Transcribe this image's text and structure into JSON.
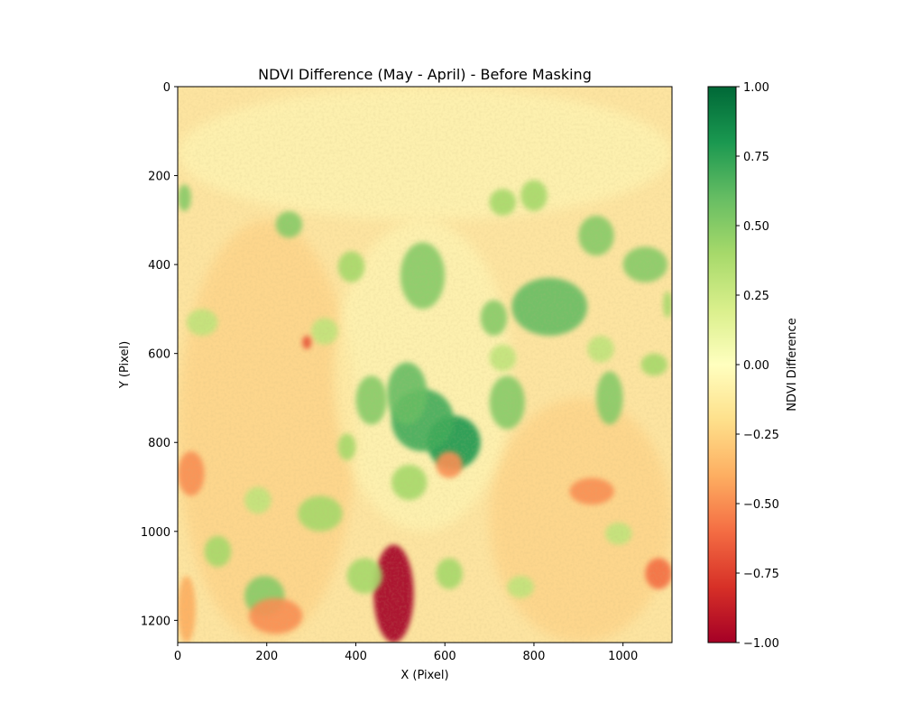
{
  "chart_data": {
    "type": "heatmap",
    "title": "NDVI Difference (May - April) - Before Masking",
    "xlabel": "X (Pixel)",
    "ylabel": "Y (Pixel)",
    "xlim": [
      0,
      1110
    ],
    "ylim": [
      1250,
      0
    ],
    "y_axis_inverted": true,
    "x_ticks": [
      0,
      200,
      400,
      600,
      800,
      1000
    ],
    "x_tick_labels": [
      "0",
      "200",
      "400",
      "600",
      "800",
      "1000"
    ],
    "y_ticks": [
      0,
      200,
      400,
      600,
      800,
      1000,
      1200
    ],
    "y_tick_labels": [
      "0",
      "200",
      "400",
      "600",
      "800",
      "1000",
      "1200"
    ],
    "colormap": "RdYlGn",
    "colormap_stops": [
      "#a50026",
      "#d73027",
      "#f46d43",
      "#fdae61",
      "#fee08b",
      "#ffffbf",
      "#d9ef8b",
      "#a6d96a",
      "#66bd63",
      "#1a9850",
      "#006837"
    ],
    "dominant_value_range": [
      -0.3,
      0.0
    ],
    "colorbar": {
      "label": "NDVI Difference",
      "range": [
        -1.0,
        1.0
      ],
      "ticks": [
        -1.0,
        -0.75,
        -0.5,
        -0.25,
        0.0,
        0.25,
        0.5,
        0.75,
        1.0
      ],
      "tick_labels": [
        "−1.00",
        "−0.75",
        "−0.50",
        "−0.25",
        "0.00",
        "0.25",
        "0.50",
        "0.75",
        "1.00"
      ]
    },
    "regions": [
      {
        "value": -1.0,
        "x": [
          440,
          530
        ],
        "y": [
          1030,
          1250
        ]
      },
      {
        "value": 0.8,
        "x": [
          560,
          680
        ],
        "y": [
          740,
          860
        ]
      },
      {
        "value": 0.7,
        "x": [
          480,
          620
        ],
        "y": [
          680,
          820
        ]
      },
      {
        "value": 0.6,
        "x": [
          470,
          560
        ],
        "y": [
          620,
          760
        ]
      },
      {
        "value": 0.6,
        "x": [
          750,
          920
        ],
        "y": [
          430,
          560
        ]
      },
      {
        "value": 0.5,
        "x": [
          500,
          600
        ],
        "y": [
          350,
          500
        ]
      },
      {
        "value": 0.5,
        "x": [
          400,
          470
        ],
        "y": [
          650,
          760
        ]
      },
      {
        "value": 0.5,
        "x": [
          680,
          740
        ],
        "y": [
          480,
          560
        ]
      },
      {
        "value": 0.5,
        "x": [
          700,
          780
        ],
        "y": [
          650,
          770
        ]
      },
      {
        "value": 0.5,
        "x": [
          940,
          1000
        ],
        "y": [
          640,
          760
        ]
      },
      {
        "value": 0.5,
        "x": [
          1000,
          1100
        ],
        "y": [
          360,
          440
        ]
      },
      {
        "value": 0.5,
        "x": [
          900,
          980
        ],
        "y": [
          290,
          380
        ]
      },
      {
        "value": 0.4,
        "x": [
          360,
          420
        ],
        "y": [
          370,
          440
        ]
      },
      {
        "value": 0.5,
        "x": [
          220,
          280
        ],
        "y": [
          280,
          340
        ]
      },
      {
        "value": 0.4,
        "x": [
          60,
          120
        ],
        "y": [
          1010,
          1080
        ]
      },
      {
        "value": 0.5,
        "x": [
          150,
          240
        ],
        "y": [
          1100,
          1190
        ]
      },
      {
        "value": 0.4,
        "x": [
          270,
          370
        ],
        "y": [
          920,
          1000
        ]
      },
      {
        "value": 0.4,
        "x": [
          380,
          460
        ],
        "y": [
          1060,
          1140
        ]
      },
      {
        "value": 0.4,
        "x": [
          580,
          640
        ],
        "y": [
          1060,
          1130
        ]
      },
      {
        "value": 0.4,
        "x": [
          480,
          560
        ],
        "y": [
          850,
          930
        ]
      },
      {
        "value": 0.4,
        "x": [
          360,
          400
        ],
        "y": [
          780,
          840
        ]
      },
      {
        "value": 0.3,
        "x": [
          20,
          90
        ],
        "y": [
          500,
          560
        ]
      },
      {
        "value": 0.4,
        "x": [
          1040,
          1100
        ],
        "y": [
          600,
          650
        ]
      },
      {
        "value": 0.5,
        "x": [
          0,
          30
        ],
        "y": [
          220,
          280
        ]
      },
      {
        "value": 0.4,
        "x": [
          770,
          830
        ],
        "y": [
          210,
          280
        ]
      },
      {
        "value": 0.4,
        "x": [
          1090,
          1110
        ],
        "y": [
          460,
          520
        ]
      },
      {
        "value": 0.3,
        "x": [
          300,
          360
        ],
        "y": [
          520,
          580
        ]
      },
      {
        "value": 0.3,
        "x": [
          700,
          760
        ],
        "y": [
          580,
          640
        ]
      },
      {
        "value": 0.3,
        "x": [
          920,
          980
        ],
        "y": [
          560,
          620
        ]
      },
      {
        "value": 0.4,
        "x": [
          700,
          760
        ],
        "y": [
          230,
          290
        ]
      },
      {
        "value": 0.3,
        "x": [
          960,
          1020
        ],
        "y": [
          980,
          1030
        ]
      },
      {
        "value": 0.3,
        "x": [
          740,
          800
        ],
        "y": [
          1100,
          1150
        ]
      },
      {
        "value": 0.3,
        "x": [
          150,
          210
        ],
        "y": [
          900,
          960
        ]
      },
      {
        "value": -0.5,
        "x": [
          0,
          60
        ],
        "y": [
          820,
          920
        ]
      },
      {
        "value": -0.5,
        "x": [
          160,
          280
        ],
        "y": [
          1150,
          1230
        ]
      },
      {
        "value": -0.6,
        "x": [
          1050,
          1110
        ],
        "y": [
          1060,
          1130
        ]
      },
      {
        "value": -0.4,
        "x": [
          0,
          40
        ],
        "y": [
          1100,
          1250
        ]
      },
      {
        "value": -0.7,
        "x": [
          280,
          300
        ],
        "y": [
          560,
          590
        ]
      },
      {
        "value": -0.5,
        "x": [
          580,
          640
        ],
        "y": [
          820,
          880
        ]
      },
      {
        "value": -0.5,
        "x": [
          880,
          980
        ],
        "y": [
          880,
          940
        ]
      }
    ]
  }
}
